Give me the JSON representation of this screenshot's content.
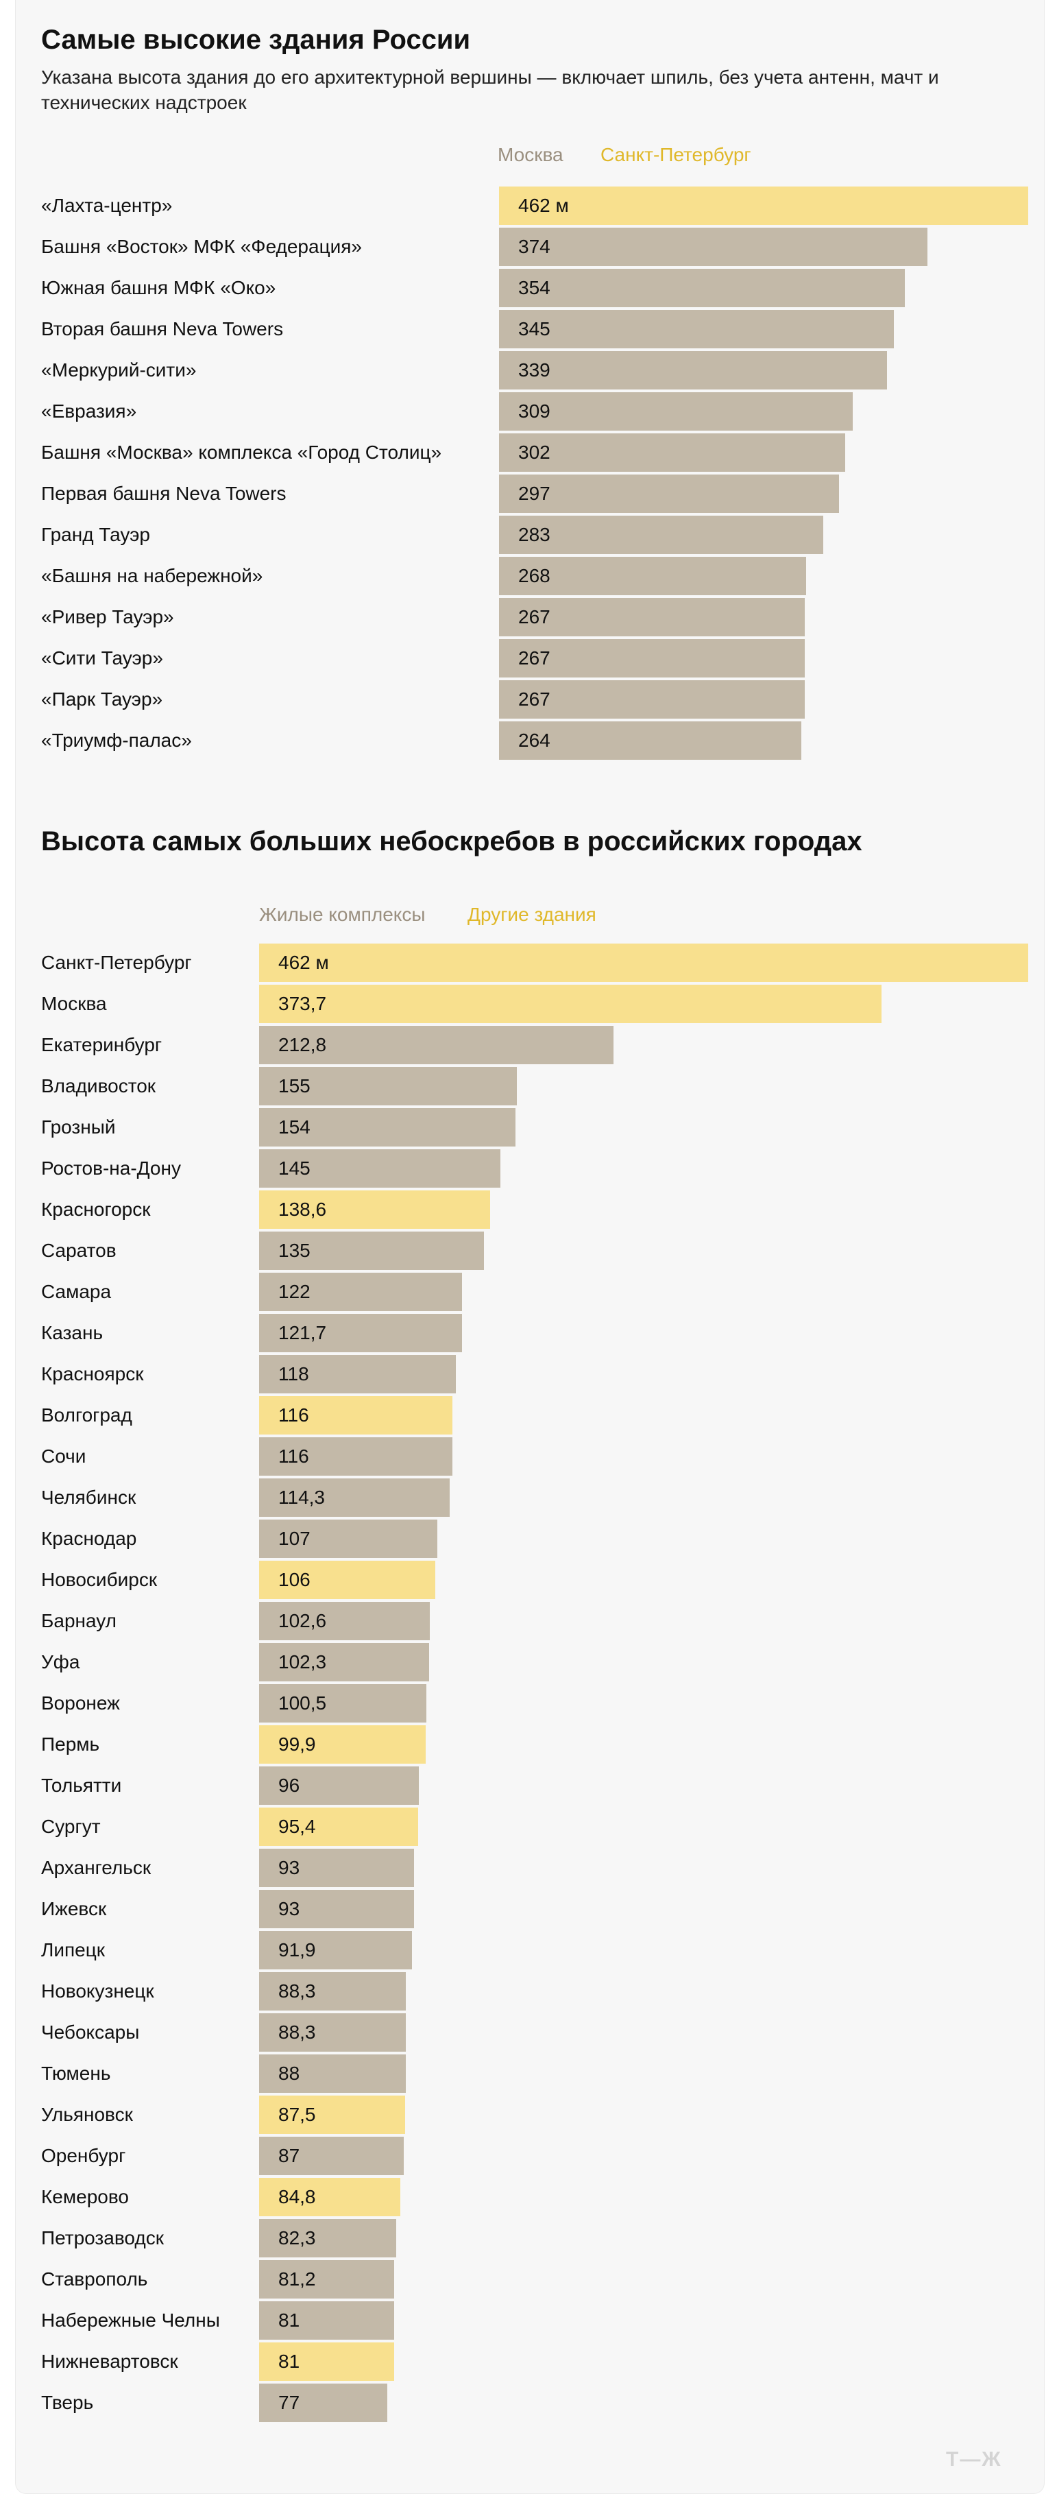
{
  "chart_data": [
    {
      "type": "bar",
      "title": "Самые высокие здания России",
      "subtitle": "Указана высота здания до его архитектурной вершины — включает шпиль, без учета антенн, мачт и технических надстроек",
      "legend": [
        "Москва",
        "Санкт-Петербург"
      ],
      "unit": "м",
      "orientation": "horizontal",
      "categories": [
        "«Лахта-центр»",
        "Башня «Восток» МФК «Федерация»",
        "Южная башня МФК «Око»",
        "Вторая башня Neva Towers",
        "«Меркурий-сити»",
        "«Евразия»",
        "Башня «Москва» комплекса «Город Столиц»",
        "Первая башня Neva Towers",
        "Гранд Тауэр",
        "«Башня на набережной»",
        "«Ривер Тауэр»",
        "«Сити Тауэр»",
        "«Парк Тауэр»",
        "«Триумф-палас»"
      ],
      "values": [
        462,
        374,
        354,
        345,
        339,
        309,
        302,
        297,
        283,
        268,
        267,
        267,
        267,
        264
      ],
      "labels": [
        "462 м",
        "374",
        "354",
        "345",
        "339",
        "309",
        "302",
        "297",
        "283",
        "268",
        "267",
        "267",
        "267",
        "264"
      ],
      "group": [
        "Санкт-Петербург",
        "Москва",
        "Москва",
        "Москва",
        "Москва",
        "Москва",
        "Москва",
        "Москва",
        "Москва",
        "Москва",
        "Москва",
        "Москва",
        "Москва",
        "Москва"
      ],
      "xlim": [
        0,
        462
      ],
      "grid": false,
      "legend_position": "top"
    },
    {
      "type": "bar",
      "title": "Высота самых больших небоскребов в российских городах",
      "legend": [
        "Жилые комплексы",
        "Другие здания"
      ],
      "unit": "м",
      "orientation": "horizontal",
      "categories": [
        "Санкт-Петербург",
        "Москва",
        "Екатеринбург",
        "Владивосток",
        "Грозный",
        "Ростов-на-Дону",
        "Красногорск",
        "Саратов",
        "Самара",
        "Казань",
        "Красноярск",
        "Волгоград",
        "Сочи",
        "Челябинск",
        "Краснодар",
        "Новосибирск",
        "Барнаул",
        "Уфа",
        "Воронеж",
        "Пермь",
        "Тольятти",
        "Сургут",
        "Архангельск",
        "Ижевск",
        "Липецк",
        "Новокузнецк",
        "Чебоксары",
        "Тюмень",
        "Ульяновск",
        "Оренбург",
        "Кемерово",
        "Петрозаводск",
        "Ставрополь",
        "Набережные Челны",
        "Нижневартовск",
        "Тверь"
      ],
      "values": [
        462,
        373.7,
        212.8,
        155,
        154,
        145,
        138.6,
        135,
        122,
        121.7,
        118,
        116,
        116,
        114.3,
        107,
        106,
        102.6,
        102.3,
        100.5,
        99.9,
        96,
        95.4,
        93,
        93,
        91.9,
        88.3,
        88.3,
        88,
        87.5,
        87,
        84.8,
        82.3,
        81.2,
        81,
        81,
        77
      ],
      "labels": [
        "462 м",
        "373,7",
        "212,8",
        "155",
        "154",
        "145",
        "138,6",
        "135",
        "122",
        "121,7",
        "118",
        "116",
        "116",
        "114,3",
        "107",
        "106",
        "102,6",
        "102,3",
        "100,5",
        "99,9",
        "96",
        "95,4",
        "93",
        "93",
        "91,9",
        "88,3",
        "88,3",
        "88",
        "87,5",
        "87",
        "84,8",
        "82,3",
        "81,2",
        "81",
        "81",
        "77"
      ],
      "group": [
        "Другие здания",
        "Другие здания",
        "Жилые комплексы",
        "Жилые комплексы",
        "Жилые комплексы",
        "Жилые комплексы",
        "Другие здания",
        "Жилые комплексы",
        "Жилые комплексы",
        "Жилые комплексы",
        "Жилые комплексы",
        "Другие здания",
        "Жилые комплексы",
        "Жилые комплексы",
        "Жилые комплексы",
        "Другие здания",
        "Жилые комплексы",
        "Жилые комплексы",
        "Жилые комплексы",
        "Другие здания",
        "Жилые комплексы",
        "Другие здания",
        "Жилые комплексы",
        "Жилые комплексы",
        "Жилые комплексы",
        "Жилые комплексы",
        "Жилые комплексы",
        "Жилые комплексы",
        "Другие здания",
        "Жилые комплексы",
        "Другие здания",
        "Жилые комплексы",
        "Жилые комплексы",
        "Жилые комплексы",
        "Другие здания",
        "Жилые комплексы"
      ],
      "xlim": [
        0,
        462
      ],
      "grid": false,
      "legend_position": "top"
    }
  ],
  "colors": {
    "moscow": "#c3b9a8",
    "spb": "#f8e08e",
    "residential": "#c3b9a8",
    "other": "#f8e08e",
    "legend_grey": "#9a8f7f",
    "legend_yellow": "#e0b82a",
    "logo": "#d4d4d4"
  },
  "logo": "Т—Ж"
}
